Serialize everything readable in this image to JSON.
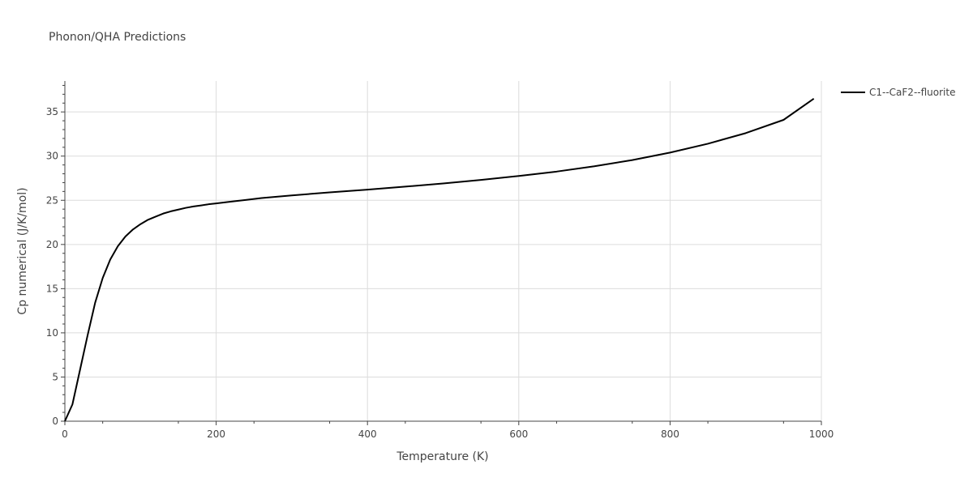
{
  "chart_data": {
    "type": "line",
    "title": "Phonon/QHA Predictions",
    "xlabel": "Temperature (K)",
    "ylabel": "Cp numerical (J/K/mol)",
    "xlim": [
      0,
      1000
    ],
    "ylim": [
      0,
      38.5
    ],
    "xticks": [
      0,
      200,
      400,
      600,
      800,
      1000
    ],
    "yticks": [
      0,
      5,
      10,
      15,
      20,
      25,
      30,
      35
    ],
    "grid": true,
    "legend_position": "top-right",
    "colors": {
      "line": "#000000",
      "grid": "#dcdcdc",
      "axis": "#444444"
    },
    "series": [
      {
        "name": "C1--CaF2--fluorite",
        "x": [
          0,
          10,
          20,
          30,
          40,
          50,
          60,
          70,
          80,
          90,
          100,
          110,
          120,
          130,
          140,
          150,
          160,
          170,
          180,
          190,
          200,
          220,
          240,
          260,
          280,
          300,
          350,
          400,
          450,
          500,
          550,
          600,
          650,
          700,
          750,
          800,
          850,
          900,
          950,
          990
        ],
        "y": [
          0,
          1.9,
          5.8,
          9.7,
          13.4,
          16.2,
          18.3,
          19.8,
          20.9,
          21.7,
          22.3,
          22.8,
          23.15,
          23.5,
          23.75,
          23.95,
          24.15,
          24.3,
          24.42,
          24.55,
          24.65,
          24.85,
          25.05,
          25.25,
          25.4,
          25.55,
          25.9,
          26.2,
          26.55,
          26.9,
          27.3,
          27.75,
          28.25,
          28.85,
          29.55,
          30.4,
          31.4,
          32.6,
          34.1,
          36.5
        ]
      }
    ]
  }
}
